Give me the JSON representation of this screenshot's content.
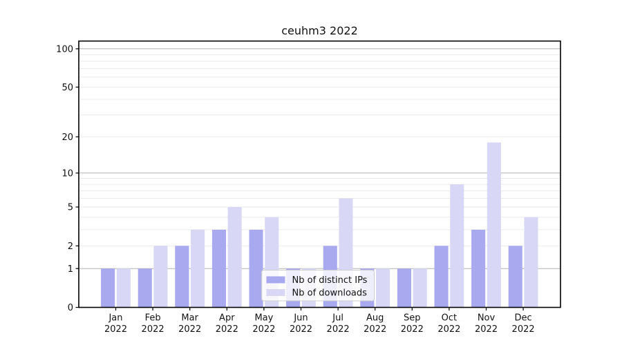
{
  "chart_data": {
    "type": "bar",
    "title": "ceuhm3 2022",
    "categories": [
      "Jan 2022",
      "Feb 2022",
      "Mar 2022",
      "Apr 2022",
      "May 2022",
      "Jun 2022",
      "Jul 2022",
      "Aug 2022",
      "Sep 2022",
      "Oct 2022",
      "Nov 2022",
      "Dec 2022"
    ],
    "months": [
      "Jan",
      "Feb",
      "Mar",
      "Apr",
      "May",
      "Jun",
      "Jul",
      "Aug",
      "Sep",
      "Oct",
      "Nov",
      "Dec"
    ],
    "year": "2022",
    "series": [
      {
        "name": "Nb of distinct IPs",
        "color": "#a9a9ef",
        "values": [
          1,
          1,
          2,
          3,
          3,
          1,
          2,
          1,
          1,
          2,
          3,
          2
        ]
      },
      {
        "name": "Nb of downloads",
        "color": "#d8d8f6",
        "values": [
          1,
          2,
          3,
          5,
          4,
          1,
          6,
          1,
          1,
          8,
          18,
          4
        ]
      }
    ],
    "xlabel": "",
    "ylabel": "",
    "y_scale": "log1p",
    "ylim": [
      0,
      115
    ],
    "y_ticks": [
      0,
      1,
      2,
      5,
      10,
      20,
      50,
      100
    ],
    "grid_major": [
      1,
      10,
      100
    ],
    "grid_minor": [
      2,
      3,
      4,
      5,
      6,
      7,
      8,
      9,
      20,
      30,
      40,
      50,
      60,
      70,
      80,
      90
    ],
    "legend": {
      "position": "lower center",
      "labels": [
        "Nb of distinct IPs",
        "Nb of downloads"
      ]
    }
  },
  "colors": {
    "major_grid": "#b3b3b3",
    "minor_grid": "#ebebeb",
    "axis": "#000000",
    "tick": "#000000",
    "text": "#111111",
    "legend_bg": "#ffffff",
    "legend_border": "#cccccc"
  }
}
